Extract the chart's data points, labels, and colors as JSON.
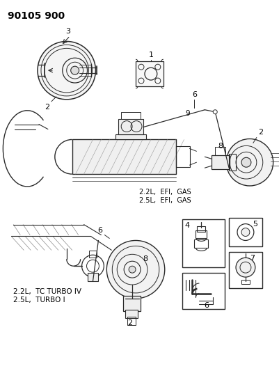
{
  "bg_color": "#ffffff",
  "line_color": "#2a2a2a",
  "text_color": "#000000",
  "gray_color": "#888888",
  "light_gray": "#cccccc",
  "figsize": [
    4.02,
    5.33
  ],
  "dpi": 100,
  "part_num": "90105 900",
  "efi_gas_label": "2.2L,  EFI,  GAS\n2.5L,  EFI,  GAS",
  "turbo_label": "2.2L,  TC TURBO IV\n2.5L,  TURBO I"
}
